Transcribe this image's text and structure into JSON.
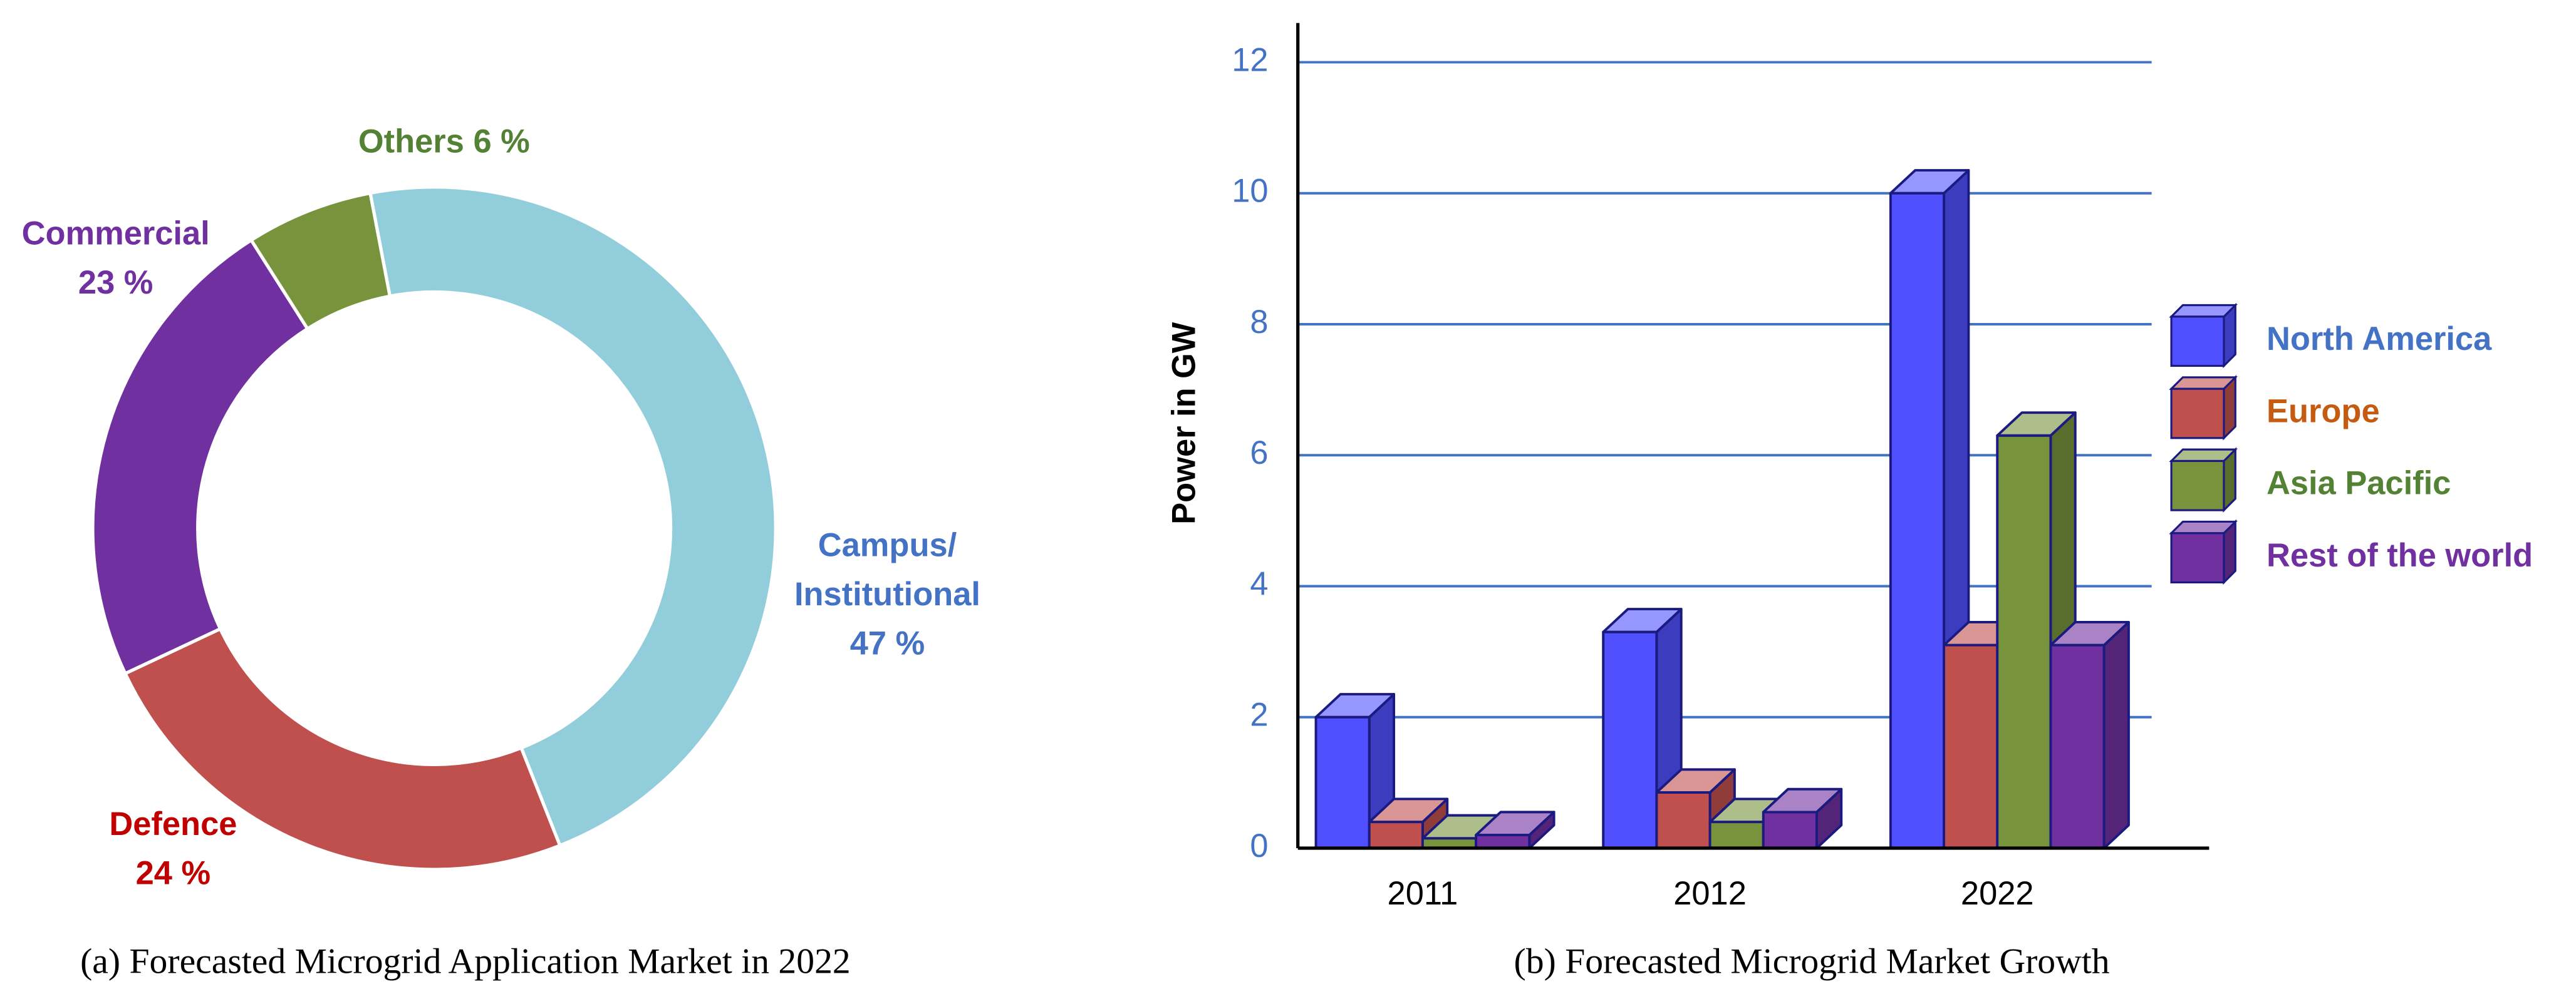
{
  "chart_data": [
    {
      "type": "pie",
      "title": "(a) Forecasted Microgrid Application Market in 2022",
      "categories": [
        "Campus/ Institutional",
        "Defence",
        "Commercial",
        "Others"
      ],
      "values": [
        47,
        24,
        23,
        6
      ],
      "value_labels": [
        "47 %",
        "24 %",
        "23 %",
        "6 %"
      ],
      "colors": [
        "#92cddc",
        "#c0504d",
        "#7030a0",
        "#77933c"
      ],
      "label_colors": [
        "#4472c4",
        "#c00000",
        "#7030a0",
        "#548235"
      ],
      "donut": true
    },
    {
      "type": "bar3d",
      "title": "(b) Forecasted Microgrid Market Growth",
      "categories": [
        "2011",
        "2012",
        "2022"
      ],
      "y_label": "Power in GW",
      "series": [
        {
          "name": "North America",
          "color": "#5050ff",
          "label_color": "#4472c4",
          "values": [
            2,
            3.3,
            10
          ]
        },
        {
          "name": "Europe",
          "color": "#c0504d",
          "label_color": "#c55a11",
          "values": [
            0.4,
            0.85,
            3.1
          ]
        },
        {
          "name": "Asia Pacific",
          "color": "#77933c",
          "label_color": "#548235",
          "values": [
            0.15,
            0.4,
            6.3
          ]
        },
        {
          "name": "Rest of the world",
          "color": "#7030a0",
          "label_color": "#7030a0",
          "values": [
            0.2,
            0.55,
            3.1
          ]
        }
      ],
      "ylim": [
        0,
        12.6
      ],
      "yticks": [
        0,
        2,
        4,
        6,
        8,
        10,
        12
      ],
      "grid": true,
      "legend": "right"
    }
  ]
}
